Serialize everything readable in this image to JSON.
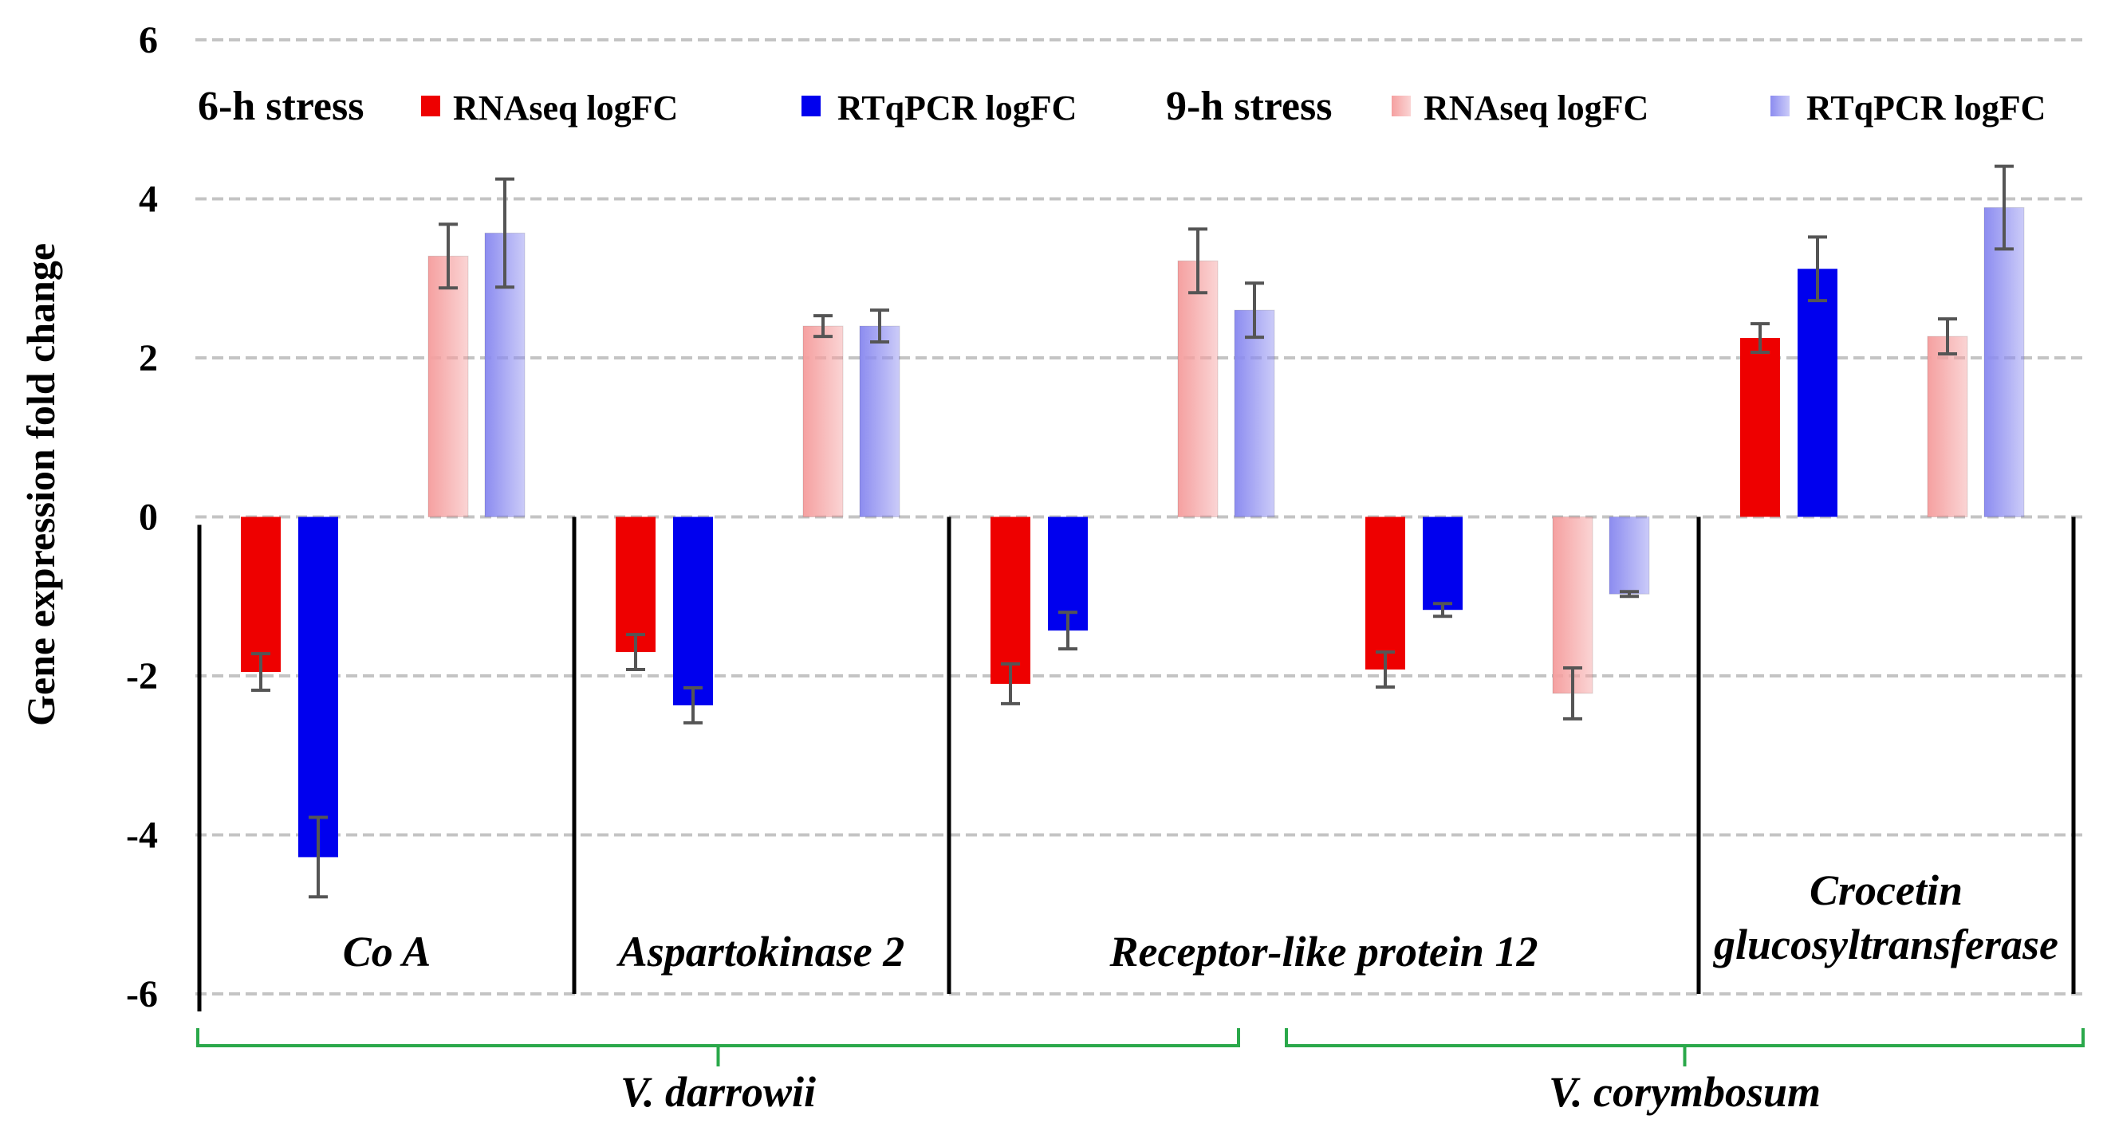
{
  "chart_data": {
    "type": "bar",
    "ylabel": "Gene expression fold change",
    "ylim": [
      -6,
      6
    ],
    "yticks": [
      6,
      4,
      2,
      0,
      -2,
      -4,
      -6
    ],
    "grid": "dashed horizontal",
    "categories": [
      {
        "lines": [
          "Co A"
        ]
      },
      {
        "lines": [
          "Aspartokinase 2"
        ]
      },
      {
        "lines": [
          "Receptor-like protein 12"
        ]
      },
      {
        "lines": [
          "Receptor-like protein 12"
        ]
      },
      {
        "lines": [
          "Crocetin",
          "glucosyltransferase"
        ]
      }
    ],
    "category_labels_shown": [
      {
        "lines": [
          "Co A"
        ],
        "span": [
          0,
          0
        ]
      },
      {
        "lines": [
          "Aspartokinase 2"
        ],
        "span": [
          1,
          1
        ]
      },
      {
        "lines": [
          "Receptor-like protein 12"
        ],
        "span": [
          2,
          3
        ]
      },
      {
        "lines": [
          "Crocetin",
          "glucosyltransferase"
        ],
        "span": [
          4,
          4
        ]
      }
    ],
    "series": [
      {
        "name": "RNAseq logFC",
        "group": "6-h stress",
        "color": "#ee0000",
        "style": "solid",
        "values": [
          -1.95,
          -1.7,
          -2.1,
          -1.92,
          2.25
        ],
        "errors": [
          0.23,
          0.22,
          0.25,
          0.22,
          0.18
        ]
      },
      {
        "name": "RTqPCR logFC",
        "group": "6-h stress",
        "color": "#0000ee",
        "style": "solid",
        "values": [
          -4.28,
          -2.37,
          -1.43,
          -1.17,
          3.12
        ],
        "errors": [
          0.5,
          0.22,
          0.23,
          0.08,
          0.4
        ]
      },
      {
        "name": "RNAseq logFC",
        "group": "9-h stress",
        "color": "#f5a0a0",
        "style": "gradient",
        "values": [
          3.28,
          2.4,
          3.22,
          -2.22,
          2.27
        ],
        "errors": [
          0.4,
          0.13,
          0.4,
          0.32,
          0.22
        ]
      },
      {
        "name": "RTqPCR logFC",
        "group": "9-h stress",
        "color": "#8c8cf0",
        "style": "gradient",
        "values": [
          3.57,
          2.4,
          2.6,
          -0.97,
          3.89
        ],
        "errors": [
          0.68,
          0.2,
          0.34,
          0.03,
          0.52
        ]
      }
    ],
    "legend": {
      "placement": "top",
      "groups": [
        {
          "title": "6-h stress",
          "entries": [
            "RNAseq logFC",
            "RTqPCR logFC"
          ]
        },
        {
          "title": "9-h stress",
          "entries": [
            "RNAseq logFC",
            "RTqPCR logFC"
          ]
        }
      ]
    },
    "species_groups": [
      {
        "name": "V. darrowii",
        "categories": [
          0,
          1,
          2
        ]
      },
      {
        "name": "V. corymbosum",
        "categories": [
          3,
          4
        ]
      }
    ]
  }
}
